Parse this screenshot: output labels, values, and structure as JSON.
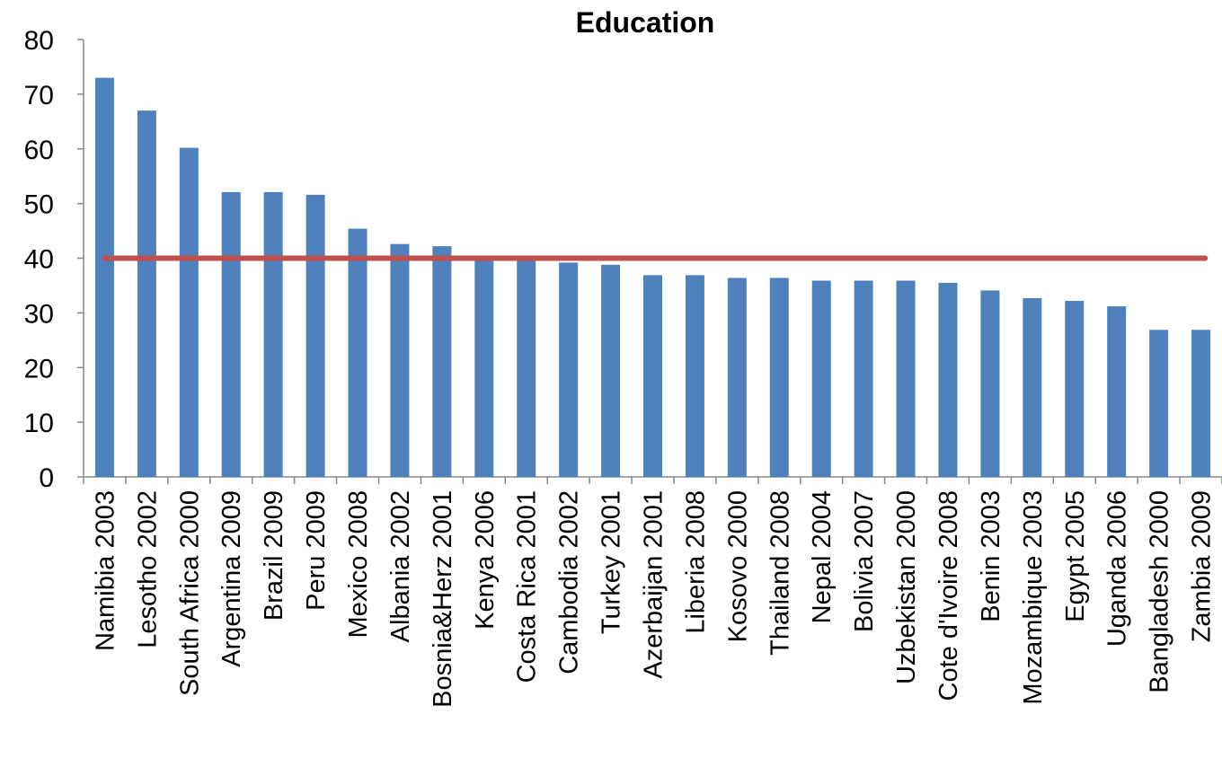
{
  "chart_data": {
    "type": "bar",
    "title": "Education",
    "xlabel": "",
    "ylabel": "",
    "ylim": [
      0,
      80
    ],
    "yticks": [
      "0",
      "10",
      "20",
      "30",
      "40",
      "50",
      "60",
      "70",
      "80"
    ],
    "categories": [
      "Namibia 2003",
      "Lesotho 2002",
      "South Africa 2000",
      "Argentina 2009",
      "Brazil 2009",
      "Peru 2009",
      "Mexico 2008",
      "Albania 2002",
      "Bosnia&Herz 2001",
      "Kenya 2006",
      "Costa Rica 2001",
      "Cambodia 2002",
      "Turkey 2001",
      "Azerbaijan 2001",
      "Liberia 2008",
      "Kosovo 2000",
      "Thailand 2008",
      "Nepal 2004",
      "Bolivia 2007",
      "Uzbekistan 2000",
      "Cote d'Ivoire 2008",
      "Benin 2003",
      "Mozambique 2003",
      "Egypt 2005",
      "Uganda 2006",
      "Bangladesh 2000",
      "Zambia 2009"
    ],
    "series": [
      {
        "values": [
          73,
          67,
          60.2,
          52.1,
          52.1,
          51.6,
          45.4,
          42.6,
          42.2,
          40.1,
          40,
          39.2,
          38.8,
          36.9,
          36.9,
          36.4,
          36.4,
          35.9,
          35.9,
          35.9,
          35.5,
          34.1,
          32.7,
          32.2,
          31.2,
          26.9,
          26.9
        ],
        "color": "#4F81BD"
      }
    ],
    "reference_line": {
      "value": 40,
      "color": "#C0504D"
    },
    "grid": false,
    "legend": "none"
  }
}
